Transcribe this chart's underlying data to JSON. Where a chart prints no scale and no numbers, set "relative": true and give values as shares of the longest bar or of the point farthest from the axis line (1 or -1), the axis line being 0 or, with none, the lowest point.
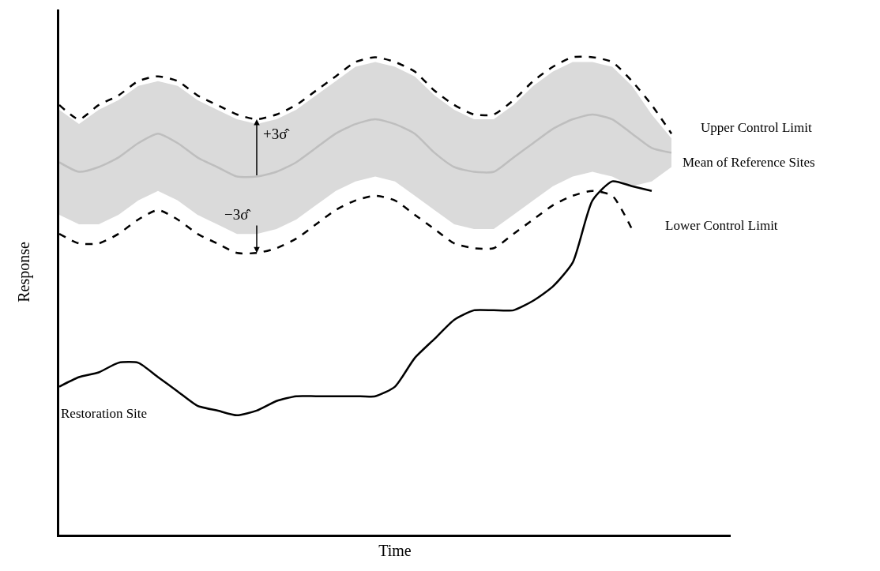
{
  "chart_data": {
    "type": "line",
    "relative": true,
    "xlabel": "Time",
    "ylabel": "Response",
    "legend": false,
    "categories": [
      null,
      null,
      null,
      null,
      null,
      null,
      null,
      null,
      null,
      null,
      null,
      null,
      null,
      null,
      null,
      null,
      null,
      null,
      null,
      null,
      null,
      null,
      null,
      null,
      null,
      null,
      null,
      null,
      null,
      null,
      null,
      null
    ],
    "series": [
      {
        "name": "Mean of Reference Sites",
        "color": "#bebebe",
        "line_style": "solid",
        "values": [
          0.78,
          0.76,
          0.77,
          0.79,
          0.82,
          0.84,
          0.82,
          0.79,
          0.77,
          0.75,
          0.75,
          0.76,
          0.78,
          0.81,
          0.84,
          0.86,
          0.87,
          0.86,
          0.84,
          0.8,
          0.77,
          0.76,
          0.76,
          0.79,
          0.82,
          0.85,
          0.87,
          0.88,
          0.87,
          0.84,
          0.81,
          0.8
        ],
        "upper": [
          0.89,
          0.86,
          0.89,
          0.91,
          0.94,
          0.95,
          0.94,
          0.91,
          0.89,
          0.87,
          0.86,
          0.87,
          0.89,
          0.92,
          0.95,
          0.98,
          0.99,
          0.98,
          0.96,
          0.92,
          0.89,
          0.87,
          0.87,
          0.9,
          0.94,
          0.97,
          0.99,
          0.99,
          0.98,
          0.94,
          0.88,
          0.83
        ],
        "lower": [
          0.67,
          0.65,
          0.65,
          0.67,
          0.7,
          0.72,
          0.7,
          0.67,
          0.65,
          0.63,
          0.63,
          0.64,
          0.66,
          0.69,
          0.72,
          0.74,
          0.75,
          0.74,
          0.71,
          0.68,
          0.65,
          0.64,
          0.64,
          0.67,
          0.7,
          0.73,
          0.75,
          0.76,
          0.75,
          0.73,
          0.74,
          0.77
        ]
      },
      {
        "name": "Upper Control Limit",
        "color": "#000000",
        "line_style": "dashed",
        "values": [
          0.9,
          0.87,
          0.9,
          0.92,
          0.95,
          0.96,
          0.95,
          0.92,
          0.9,
          0.88,
          0.87,
          0.88,
          0.9,
          0.93,
          0.96,
          0.99,
          1.0,
          0.99,
          0.97,
          0.93,
          0.9,
          0.88,
          0.88,
          0.91,
          0.95,
          0.98,
          1.0,
          1.0,
          0.99,
          0.95,
          0.9,
          0.84
        ]
      },
      {
        "name": "Lower Control Limit",
        "color": "#000000",
        "line_style": "dashed",
        "values": [
          0.63,
          0.61,
          0.61,
          0.63,
          0.66,
          0.68,
          0.66,
          0.63,
          0.61,
          0.59,
          0.59,
          0.6,
          0.62,
          0.65,
          0.68,
          0.7,
          0.71,
          0.7,
          0.67,
          0.64,
          0.61,
          0.6,
          0.6,
          0.63,
          0.66,
          0.69,
          0.71,
          0.72,
          0.71,
          0.64,
          null,
          null
        ]
      },
      {
        "name": "Restoration Site",
        "color": "#000000",
        "line_style": "solid",
        "values": [
          0.31,
          0.33,
          0.34,
          0.36,
          0.36,
          0.33,
          0.3,
          0.27,
          0.26,
          0.25,
          0.26,
          0.28,
          0.29,
          0.29,
          0.29,
          0.29,
          0.29,
          0.31,
          0.37,
          0.41,
          0.45,
          0.47,
          0.47,
          0.47,
          0.49,
          0.52,
          0.57,
          0.7,
          0.74,
          0.73,
          0.72,
          null
        ]
      }
    ],
    "annotations": [
      "+3σ̂",
      "−3σ̂"
    ]
  }
}
